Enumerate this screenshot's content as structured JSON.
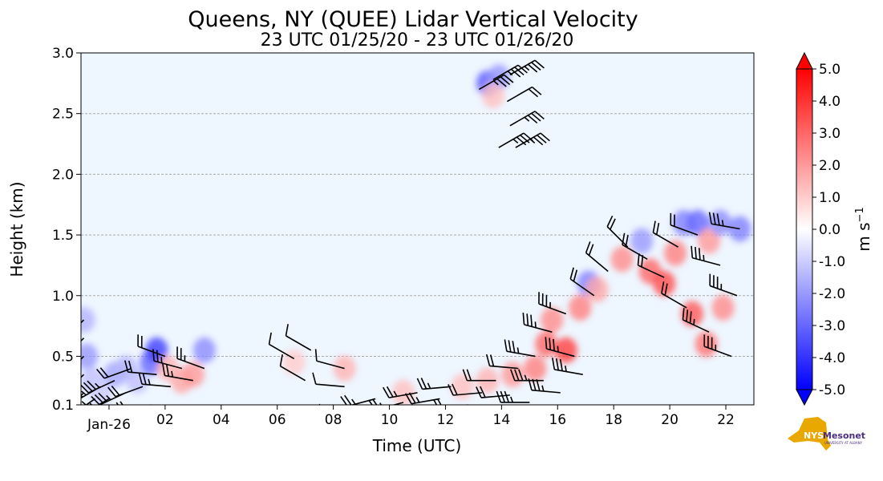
{
  "chart_data": {
    "type": "heatmap",
    "title": "Queens, NY (QUEE) Lidar Vertical Velocity",
    "subtitle": "23 UTC 01/25/20 - 23 UTC 01/26/20",
    "xlabel": "Time (UTC)",
    "ylabel": "Height (km)",
    "xlim_hours": [
      -1,
      23
    ],
    "ylim": [
      0.1,
      3.0
    ],
    "x_ticks": [
      {
        "hour": 0,
        "label": "Jan-26"
      },
      {
        "hour": 2,
        "label": "02"
      },
      {
        "hour": 4,
        "label": "04"
      },
      {
        "hour": 6,
        "label": "06"
      },
      {
        "hour": 8,
        "label": "08"
      },
      {
        "hour": 10,
        "label": "10"
      },
      {
        "hour": 12,
        "label": "12"
      },
      {
        "hour": 14,
        "label": "14"
      },
      {
        "hour": 16,
        "label": "16"
      },
      {
        "hour": 18,
        "label": "18"
      },
      {
        "hour": 20,
        "label": "20"
      },
      {
        "hour": 22,
        "label": "22"
      }
    ],
    "y_ticks": [
      {
        "value": 0.1,
        "label": "0.1"
      },
      {
        "value": 0.5,
        "label": "0.5"
      },
      {
        "value": 1.0,
        "label": "1.0"
      },
      {
        "value": 1.5,
        "label": "1.5"
      },
      {
        "value": 2.0,
        "label": "2.0"
      },
      {
        "value": 2.5,
        "label": "2.5"
      },
      {
        "value": 3.0,
        "label": "3.0"
      }
    ],
    "grid": "horizontal dashed",
    "colorbar": {
      "label": "m s",
      "label_exp": "−1",
      "range": [
        -5,
        5
      ],
      "ticks": [
        "5.0",
        "4.0",
        "3.0",
        "2.0",
        "1.0",
        "0.0",
        "-1.0",
        "-2.0",
        "-3.0",
        "-4.0",
        "-5.0"
      ],
      "tick_values": [
        5,
        4,
        3,
        2,
        1,
        0,
        -1,
        -2,
        -3,
        -4,
        -5
      ],
      "colors": {
        "min": "#0000ff",
        "mid": "#ffffff",
        "max": "#ff0000"
      }
    },
    "background_color": "#eef6ff",
    "velocity_patches": [
      [
        -0.9,
        0.8,
        -0.6
      ],
      [
        -0.8,
        0.5,
        -0.8
      ],
      [
        -0.6,
        0.3,
        -0.5
      ],
      [
        -0.3,
        0.2,
        -0.4
      ],
      [
        0.2,
        0.35,
        -0.7
      ],
      [
        0.6,
        0.4,
        -0.6
      ],
      [
        1.0,
        0.3,
        -0.5
      ],
      [
        1.5,
        0.45,
        -1.2
      ],
      [
        1.7,
        0.55,
        -1.5
      ],
      [
        2.1,
        0.4,
        0.6
      ],
      [
        2.6,
        0.3,
        0.7
      ],
      [
        3.0,
        0.35,
        0.8
      ],
      [
        3.4,
        0.55,
        -0.9
      ],
      [
        6.6,
        0.45,
        0.4
      ],
      [
        8.4,
        0.4,
        0.6
      ],
      [
        10.5,
        0.2,
        0.5
      ],
      [
        12.6,
        0.25,
        0.5
      ],
      [
        13.5,
        0.3,
        0.6
      ],
      [
        14.4,
        0.35,
        0.8
      ],
      [
        15.2,
        0.4,
        1.0
      ],
      [
        15.6,
        0.6,
        1.2
      ],
      [
        15.8,
        0.8,
        0.9
      ],
      [
        16.3,
        0.55,
        1.5
      ],
      [
        16.8,
        0.9,
        1.0
      ],
      [
        17.1,
        1.1,
        -1.0
      ],
      [
        17.4,
        1.05,
        0.7
      ],
      [
        18.3,
        1.3,
        0.9
      ],
      [
        19.0,
        1.45,
        -0.8
      ],
      [
        19.3,
        1.2,
        1.2
      ],
      [
        19.8,
        1.1,
        1.4
      ],
      [
        20.2,
        1.35,
        1.0
      ],
      [
        20.5,
        1.6,
        -1.0
      ],
      [
        21.0,
        1.6,
        -1.2
      ],
      [
        21.4,
        1.45,
        0.8
      ],
      [
        21.8,
        1.6,
        -0.9
      ],
      [
        22.5,
        1.55,
        -1.0
      ],
      [
        20.8,
        0.85,
        1.3
      ],
      [
        21.3,
        0.6,
        1.1
      ],
      [
        21.9,
        0.9,
        0.9
      ],
      [
        13.5,
        2.75,
        -1.3
      ],
      [
        13.9,
        2.8,
        -0.8
      ],
      [
        13.7,
        2.65,
        0.5
      ]
    ],
    "wind_barbs": [
      [
        -0.9,
        0.2,
        225,
        30
      ],
      [
        -0.9,
        0.35,
        225,
        30
      ],
      [
        -0.9,
        0.5,
        225,
        30
      ],
      [
        -0.9,
        0.65,
        225,
        30
      ],
      [
        -0.9,
        0.8,
        225,
        30
      ],
      [
        -0.5,
        0.15,
        235,
        25
      ],
      [
        -0.3,
        0.25,
        240,
        25
      ],
      [
        0.0,
        0.15,
        240,
        25
      ],
      [
        0.2,
        0.3,
        245,
        25
      ],
      [
        0.6,
        0.2,
        245,
        25
      ],
      [
        0.8,
        0.4,
        250,
        20
      ],
      [
        1.2,
        0.25,
        250,
        20
      ],
      [
        1.5,
        0.1,
        255,
        20
      ],
      [
        1.7,
        0.35,
        275,
        20
      ],
      [
        2.0,
        0.5,
        290,
        20
      ],
      [
        2.2,
        0.25,
        275,
        15
      ],
      [
        2.6,
        0.4,
        285,
        15
      ],
      [
        3.0,
        0.3,
        280,
        15
      ],
      [
        3.4,
        0.4,
        290,
        15
      ],
      [
        6.6,
        0.48,
        300,
        10
      ],
      [
        7.0,
        0.3,
        300,
        10
      ],
      [
        7.2,
        0.55,
        300,
        10
      ],
      [
        8.4,
        0.4,
        285,
        10
      ],
      [
        8.4,
        0.25,
        275,
        10
      ],
      [
        8.6,
        0.1,
        250,
        15
      ],
      [
        9.5,
        0.15,
        255,
        15
      ],
      [
        10.5,
        0.12,
        255,
        15
      ],
      [
        11.0,
        0.2,
        260,
        15
      ],
      [
        11.8,
        0.15,
        260,
        15
      ],
      [
        12.2,
        0.25,
        265,
        15
      ],
      [
        12.8,
        0.1,
        260,
        20
      ],
      [
        13.3,
        0.2,
        265,
        20
      ],
      [
        13.8,
        0.3,
        270,
        20
      ],
      [
        14.3,
        0.18,
        265,
        20
      ],
      [
        14.6,
        0.4,
        275,
        20
      ],
      [
        15.0,
        0.12,
        270,
        25
      ],
      [
        15.2,
        0.5,
        280,
        25
      ],
      [
        15.5,
        0.3,
        270,
        25
      ],
      [
        15.8,
        0.7,
        285,
        25
      ],
      [
        16.1,
        0.2,
        275,
        25
      ],
      [
        16.3,
        0.85,
        290,
        25
      ],
      [
        16.6,
        0.5,
        285,
        25
      ],
      [
        16.9,
        0.35,
        280,
        25
      ],
      [
        17.3,
        1.0,
        305,
        20
      ],
      [
        17.8,
        1.2,
        310,
        20
      ],
      [
        18.5,
        1.4,
        315,
        20
      ],
      [
        19.2,
        1.3,
        300,
        20
      ],
      [
        19.8,
        1.15,
        295,
        20
      ],
      [
        20.3,
        1.4,
        300,
        20
      ],
      [
        20.6,
        0.9,
        300,
        20
      ],
      [
        21.0,
        1.5,
        290,
        20
      ],
      [
        21.4,
        0.7,
        295,
        25
      ],
      [
        21.8,
        1.25,
        285,
        25
      ],
      [
        22.2,
        0.5,
        290,
        25
      ],
      [
        22.4,
        1.0,
        290,
        25
      ],
      [
        22.5,
        1.55,
        280,
        25
      ],
      [
        13.2,
        2.7,
        60,
        25
      ],
      [
        13.7,
        2.78,
        60,
        25
      ],
      [
        14.3,
        2.82,
        60,
        25
      ],
      [
        14.2,
        2.6,
        60,
        20
      ],
      [
        14.3,
        2.4,
        60,
        25
      ],
      [
        13.9,
        2.22,
        60,
        25
      ],
      [
        14.5,
        2.22,
        60,
        25
      ]
    ]
  },
  "logo": {
    "text_nys": "NYS",
    "text_mesonet": "Mesonet",
    "text_sub": "UNIVERSITY AT ALBANY"
  }
}
